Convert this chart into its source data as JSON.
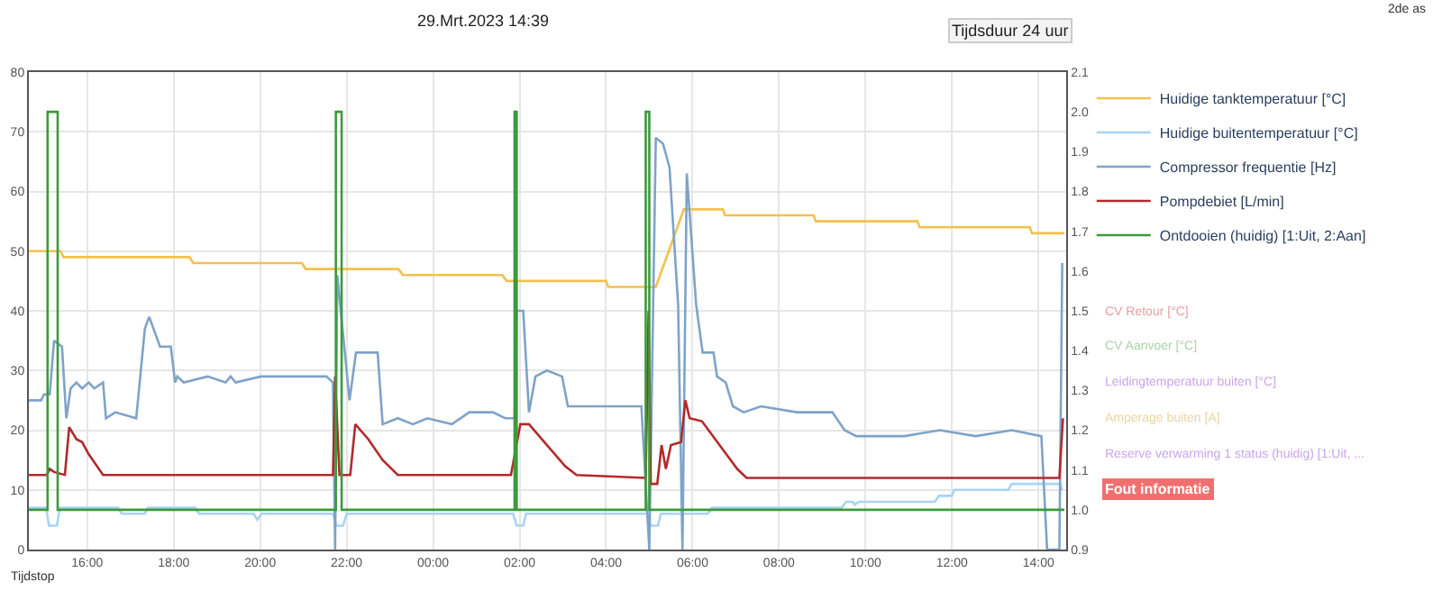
{
  "chart_data": {
    "type": "line",
    "title": "29.Mrt.2023 14:39",
    "xlabel": "Tijdstop",
    "xlim": [
      "2023-03-28T14:39",
      "2023-03-29T14:39"
    ],
    "xticks": [
      {
        "value": "2023-03-28T16:00",
        "label": "16:00"
      },
      {
        "value": "2023-03-28T18:00",
        "label": "18:00"
      },
      {
        "value": "2023-03-28T20:00",
        "label": "20:00"
      },
      {
        "value": "2023-03-28T22:00",
        "label": "22:00"
      },
      {
        "value": "2023-03-29T00:00",
        "label": "00:00"
      },
      {
        "value": "2023-03-29T02:00",
        "label": "02:00"
      },
      {
        "value": "2023-03-29T04:00",
        "label": "04:00"
      },
      {
        "value": "2023-03-29T06:00",
        "label": "06:00"
      },
      {
        "value": "2023-03-29T08:00",
        "label": "08:00"
      },
      {
        "value": "2023-03-29T10:00",
        "label": "10:00"
      },
      {
        "value": "2023-03-29T12:00",
        "label": "12:00"
      },
      {
        "value": "2023-03-29T14:00",
        "label": "14:00"
      }
    ],
    "ylim": [
      0,
      80
    ],
    "yticks": [
      0,
      10,
      20,
      30,
      40,
      50,
      60,
      70,
      80
    ],
    "y2lim": [
      0.9,
      2.1
    ],
    "y2ticks": [
      0.9,
      {
        "value": 1,
        "label": "1.0"
      },
      1.1,
      1.2,
      1.3,
      1.4,
      1.5,
      1.6,
      1.7,
      1.8,
      1.9,
      {
        "value": 2,
        "label": "2.0"
      },
      2.1
    ],
    "grid": true,
    "legend": "right",
    "marker": "none",
    "line_style": "solid",
    "annotations": [
      "CV Retour [°C]",
      "CV Aanvoer [°C]",
      "Leidingtemperatuur buiten [°C]",
      "Amperage buiten [A]",
      "Reserve verwarming 1 status (huidig) [1:Uit, ...",
      "Fout informatie",
      "2de as",
      "Tijdsduur 24 uur"
    ],
    "series": [
      {
        "name": "Huidige tanktemperatuur [°C]",
        "color": "#f2c14e",
        "x": [
          "2023-03-28T14:39",
          "2023-03-28T15:23",
          "2023-03-28T15:27",
          "2023-03-28T18:22",
          "2023-03-28T18:27",
          "2023-03-28T20:58",
          "2023-03-28T21:03",
          "2023-03-28T23:12",
          "2023-03-28T23:18",
          "2023-03-29T01:36",
          "2023-03-29T01:42",
          "2023-03-29T04:00",
          "2023-03-29T04:03",
          "2023-03-29T05:09",
          "2023-03-29T05:48",
          "2023-03-29T06:42",
          "2023-03-29T06:45",
          "2023-03-29T08:48",
          "2023-03-29T08:51",
          "2023-03-29T11:12",
          "2023-03-29T11:15",
          "2023-03-29T13:48",
          "2023-03-29T13:51",
          "2023-03-29T14:36"
        ],
        "values": [
          50,
          50,
          49,
          49,
          48,
          48,
          47,
          47,
          46,
          46,
          45,
          45,
          44,
          44,
          57,
          57,
          56,
          56,
          55,
          55,
          54,
          54,
          53,
          53
        ]
      },
      {
        "name": "Huidige buitentemperatuur [°C]",
        "color": "#a8d4f5",
        "x": [
          "2023-03-28T14:39",
          "2023-03-28T15:03",
          "2023-03-28T15:07",
          "2023-03-28T15:18",
          "2023-03-28T15:22",
          "2023-03-28T16:43",
          "2023-03-28T16:48",
          "2023-03-28T17:20",
          "2023-03-28T17:24",
          "2023-03-28T18:30",
          "2023-03-28T18:35",
          "2023-03-28T19:51",
          "2023-03-28T19:56",
          "2023-03-28T20:02",
          "2023-03-28T21:41",
          "2023-03-28T21:46",
          "2023-03-28T21:55",
          "2023-03-28T22:00",
          "2023-03-29T01:51",
          "2023-03-29T01:56",
          "2023-03-29T02:05",
          "2023-03-29T02:09",
          "2023-03-29T04:57",
          "2023-03-29T05:02",
          "2023-03-29T05:12",
          "2023-03-29T05:16",
          "2023-03-29T06:21",
          "2023-03-29T06:27",
          "2023-03-29T09:27",
          "2023-03-29T09:33",
          "2023-03-29T09:42",
          "2023-03-29T09:45",
          "2023-03-29T09:51",
          "2023-03-29T11:36",
          "2023-03-29T11:42",
          "2023-03-29T12:00",
          "2023-03-29T12:03",
          "2023-03-29T13:18",
          "2023-03-29T13:23",
          "2023-03-29T14:30",
          "2023-03-29T14:33"
        ],
        "values": [
          7,
          7,
          4,
          4,
          7,
          7,
          6,
          6,
          7,
          7,
          6,
          6,
          5,
          6,
          6,
          4,
          4,
          6,
          6,
          4,
          4,
          6,
          6,
          4,
          4,
          6,
          6,
          7,
          7,
          8,
          8,
          7.5,
          8,
          8,
          9,
          9,
          10,
          10,
          11,
          11,
          10
        ]
      },
      {
        "name": "Compressor frequentie [Hz]",
        "color": "#7ea3c8",
        "x": [
          "2023-03-28T14:39",
          "2023-03-28T14:56",
          "2023-03-28T15:00",
          "2023-03-28T15:08",
          "2023-03-28T15:14",
          "2023-03-28T15:25",
          "2023-03-28T15:31",
          "2023-03-28T15:37",
          "2023-03-28T15:45",
          "2023-03-28T15:53",
          "2023-03-28T16:02",
          "2023-03-28T16:10",
          "2023-03-28T16:22",
          "2023-03-28T16:26",
          "2023-03-28T16:39",
          "2023-03-28T17:08",
          "2023-03-28T17:20",
          "2023-03-28T17:26",
          "2023-03-28T17:41",
          "2023-03-28T17:56",
          "2023-03-28T18:02",
          "2023-03-28T18:05",
          "2023-03-28T18:14",
          "2023-03-28T18:47",
          "2023-03-28T19:12",
          "2023-03-28T19:19",
          "2023-03-28T19:26",
          "2023-03-28T20:01",
          "2023-03-28T20:51",
          "2023-03-28T21:32",
          "2023-03-28T21:41",
          "2023-03-28T21:44",
          "2023-03-28T21:47",
          "2023-03-28T22:04",
          "2023-03-28T22:13",
          "2023-03-28T22:43",
          "2023-03-28T22:50",
          "2023-03-28T23:11",
          "2023-03-28T23:32",
          "2023-03-28T23:52",
          "2023-03-29T00:26",
          "2023-03-29T00:50",
          "2023-03-29T01:23",
          "2023-03-29T01:40",
          "2023-03-29T01:53",
          "2023-03-29T01:56",
          "2023-03-29T02:05",
          "2023-03-29T02:13",
          "2023-03-29T02:22",
          "2023-03-29T02:38",
          "2023-03-29T02:59",
          "2023-03-29T03:07",
          "2023-03-29T03:52",
          "2023-03-29T04:49",
          "2023-03-29T05:00",
          "2023-03-29T05:09",
          "2023-03-29T05:19",
          "2023-03-29T05:28",
          "2023-03-29T05:40",
          "2023-03-29T05:46",
          "2023-03-29T05:52",
          "2023-03-29T06:05",
          "2023-03-29T06:14",
          "2023-03-29T06:29",
          "2023-03-29T06:34",
          "2023-03-29T06:46",
          "2023-03-29T06:56",
          "2023-03-29T07:11",
          "2023-03-29T07:35",
          "2023-03-29T08:25",
          "2023-03-29T09:14",
          "2023-03-29T09:31",
          "2023-03-29T09:47",
          "2023-03-29T10:54",
          "2023-03-29T11:43",
          "2023-03-29T12:33",
          "2023-03-29T13:23",
          "2023-03-29T14:04",
          "2023-03-29T14:12",
          "2023-03-29T14:29",
          "2023-03-29T14:33"
        ],
        "values": [
          25,
          25,
          26,
          26,
          35,
          34,
          22,
          27,
          28,
          27,
          28,
          27,
          28,
          22,
          23,
          22,
          37,
          39,
          34,
          34,
          28,
          29,
          28,
          29,
          28,
          29,
          28,
          29,
          29,
          29,
          28,
          0,
          46,
          25,
          33,
          33,
          21,
          22,
          21,
          22,
          21,
          23,
          23,
          22,
          22,
          40,
          40,
          23,
          29,
          30,
          29,
          24,
          24,
          24,
          0,
          69,
          68,
          64,
          41,
          0,
          63,
          41,
          33,
          33,
          29,
          28,
          24,
          23,
          24,
          23,
          23,
          20,
          19,
          19,
          20,
          19,
          20,
          19,
          0,
          0,
          48
        ]
      },
      {
        "name": "Pompdebiet [L/min]",
        "color": "#b22a2a",
        "x": [
          "2023-03-28T14:39",
          "2023-03-28T15:04",
          "2023-03-28T15:08",
          "2023-03-28T15:14",
          "2023-03-28T15:29",
          "2023-03-28T15:35",
          "2023-03-28T15:45",
          "2023-03-28T15:53",
          "2023-03-28T16:02",
          "2023-03-28T16:22",
          "2023-03-28T21:41",
          "2023-03-28T21:44",
          "2023-03-28T21:50",
          "2023-03-28T22:05",
          "2023-03-28T22:12",
          "2023-03-28T22:30",
          "2023-03-28T22:50",
          "2023-03-28T23:11",
          "2023-03-29T01:48",
          "2023-03-29T02:01",
          "2023-03-29T02:13",
          "2023-03-29T02:38",
          "2023-03-29T03:03",
          "2023-03-29T03:19",
          "2023-03-29T04:55",
          "2023-03-29T04:59",
          "2023-03-29T05:02",
          "2023-03-29T05:11",
          "2023-03-29T05:17",
          "2023-03-29T05:23",
          "2023-03-29T05:30",
          "2023-03-29T05:44",
          "2023-03-29T05:50",
          "2023-03-29T05:56",
          "2023-03-29T06:13",
          "2023-03-29T07:02",
          "2023-03-29T07:15",
          "2023-03-29T14:29",
          "2023-03-29T14:34"
        ],
        "values": [
          12.5,
          12.5,
          13.5,
          13,
          12.5,
          20.5,
          18.5,
          18,
          16,
          12.5,
          12.5,
          29,
          12.5,
          12.5,
          21,
          18.5,
          15,
          12.5,
          12.5,
          21,
          21,
          17.5,
          14,
          12.5,
          12,
          40,
          11,
          11,
          17.5,
          13.5,
          17.5,
          18,
          25,
          22,
          21.5,
          13.5,
          12,
          12,
          22
        ]
      },
      {
        "name": "Ontdooien (huidig) [1:Uit, 2:Aan]",
        "color": "#3c9a3c",
        "type": "step",
        "axis": "y2",
        "x": [
          "2023-03-28T14:39",
          "2023-03-28T15:05",
          "2023-03-28T15:19",
          "2023-03-28T21:45",
          "2023-03-28T21:53",
          "2023-03-29T01:53",
          "2023-03-29T01:56",
          "2023-03-29T04:55",
          "2023-03-29T05:00",
          "2023-03-29T14:36"
        ],
        "values": [
          1,
          2,
          1,
          2,
          1,
          2,
          1,
          2,
          1,
          1
        ]
      }
    ]
  }
}
